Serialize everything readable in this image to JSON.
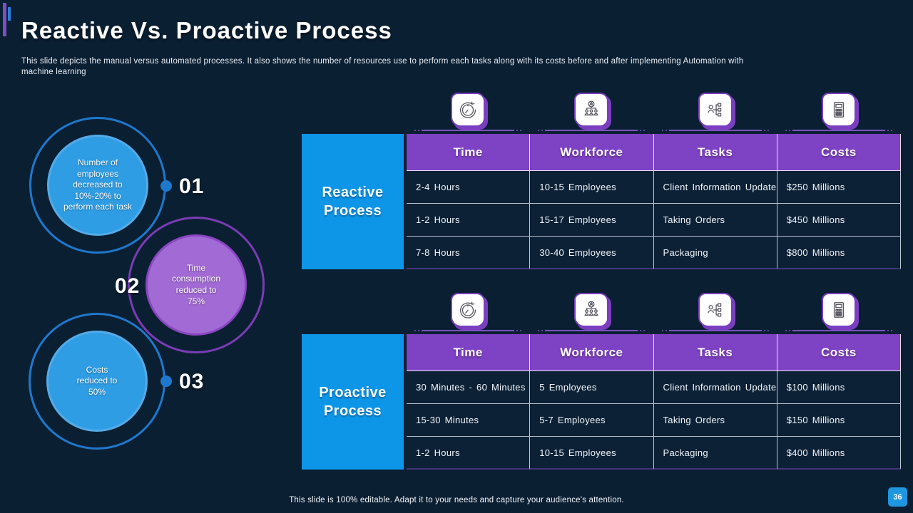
{
  "slide": {
    "title": "Reactive Vs. Proactive Process",
    "subtitle": "This slide depicts the manual versus automated processes. It also shows the number of resources use to perform each tasks along with its costs before and after implementing Automation with machine learning",
    "footer": "This slide is 100% editable. Adapt it to your needs and capture your audience's attention.",
    "page_number": "36"
  },
  "colors": {
    "background": "#0B1F33",
    "accent_blue": "#0D96E8",
    "accent_purple": "#7E42C4",
    "circle_blue": "#2F9DE4",
    "circle_purple": "#A26AD4"
  },
  "bullets": [
    {
      "number": "01",
      "text": "Number of employees decreased to 10%-20% to perform each task",
      "color": "blue"
    },
    {
      "number": "02",
      "text": "Time consumption reduced to 75%",
      "color": "purple"
    },
    {
      "number": "03",
      "text": "Costs reduced to 50%",
      "color": "blue"
    }
  ],
  "icons": [
    "time-icon",
    "workforce-icon",
    "tasks-icon",
    "costs-icon"
  ],
  "tables": [
    {
      "label": "Reactive Process",
      "columns": [
        "Time",
        "Workforce",
        "Tasks",
        "Costs"
      ],
      "rows": [
        [
          "2-4 Hours",
          "10-15 Employees",
          "Client Information Update",
          "$250 Millions"
        ],
        [
          "1-2 Hours",
          "15-17 Employees",
          "Taking Orders",
          "$450 Millions"
        ],
        [
          "7-8 Hours",
          "30-40 Employees",
          "Packaging",
          "$800 Millions"
        ]
      ]
    },
    {
      "label": "Proactive Process",
      "columns": [
        "Time",
        "Workforce",
        "Tasks",
        "Costs"
      ],
      "rows": [
        [
          "30 Minutes - 60 Minutes",
          "5 Employees",
          "Client Information Update",
          "$100 Millions"
        ],
        [
          "15-30 Minutes",
          "5-7 Employees",
          "Taking Orders",
          "$150 Millions"
        ],
        [
          "1-2 Hours",
          "10-15 Employees",
          "Packaging",
          "$400 Millions"
        ]
      ]
    }
  ]
}
